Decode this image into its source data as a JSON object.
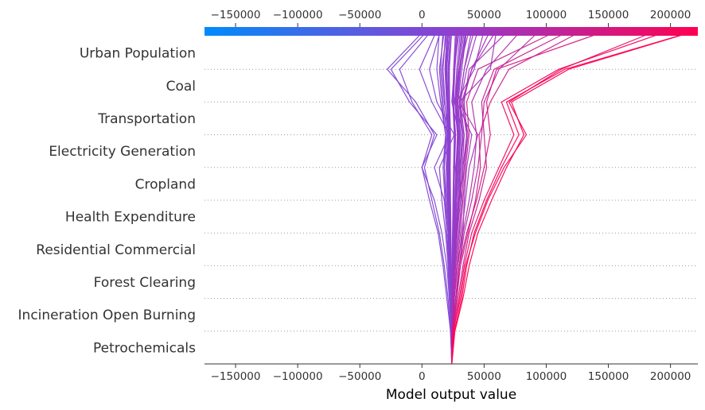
{
  "chart_data": {
    "type": "decision_plot",
    "title": "",
    "xlabel": "Model output value",
    "ylabel": "",
    "xlim": [
      -175000,
      222000
    ],
    "base_value": 24000,
    "xticks": [
      -150000,
      -100000,
      -50000,
      0,
      50000,
      100000,
      150000,
      200000
    ],
    "xtick_labels": [
      "−150000",
      "−100000",
      "−50000",
      "0",
      "50000",
      "100000",
      "150000",
      "200000"
    ],
    "features": [
      "Urban Population",
      "Coal",
      "Transportation",
      "Electricity Generation",
      "Cropland",
      "Health Expenditure",
      "Residential Commercial",
      "Forest Clearing",
      "Incineration Open Burning",
      "Petrochemicals"
    ],
    "grid": "dotted horizontal separators",
    "colorbar": {
      "position": "top",
      "low_color": "#008bfb",
      "mid_color": "#8f3fd0",
      "high_color": "#ff0051"
    },
    "series_note_order": "values listed from bottom (Petrochemicals) to top (final model output)",
    "series": [
      {
        "values": [
          24000,
          26000,
          32000,
          36000,
          42000,
          52000,
          64000,
          78000,
          68000,
          115000,
          222000
        ]
      },
      {
        "values": [
          24000,
          25500,
          30000,
          34000,
          40000,
          50000,
          62000,
          74000,
          64000,
          110000,
          200000
        ]
      },
      {
        "values": [
          24000,
          26500,
          33000,
          38000,
          45000,
          56000,
          68000,
          82000,
          72000,
          118000,
          222000
        ]
      },
      {
        "values": [
          24000,
          25000,
          31000,
          35000,
          43000,
          53000,
          66000,
          84000,
          70000,
          112000,
          190000
        ]
      },
      {
        "values": [
          24000,
          24500,
          28000,
          30000,
          36000,
          44000,
          50000,
          55000,
          52000,
          60000,
          150000
        ]
      },
      {
        "values": [
          24000,
          25000,
          29000,
          33000,
          38000,
          46000,
          52000,
          50000,
          48000,
          58000,
          120000
        ]
      },
      {
        "values": [
          24000,
          24200,
          27000,
          30000,
          34000,
          40000,
          45000,
          48000,
          50000,
          62000,
          95000
        ]
      },
      {
        "values": [
          24000,
          24800,
          28000,
          31000,
          37000,
          43000,
          47000,
          46000,
          55000,
          70000,
          130000
        ]
      },
      {
        "values": [
          24000,
          23800,
          26000,
          28000,
          33000,
          38000,
          42000,
          44000,
          40000,
          52000,
          80000
        ]
      },
      {
        "values": [
          24000,
          24000,
          25000,
          26000,
          28000,
          30000,
          34000,
          36000,
          32000,
          40000,
          60000
        ]
      },
      {
        "values": [
          24000,
          23500,
          22000,
          20000,
          16000,
          10000,
          0,
          12000,
          -10000,
          -25000,
          5000
        ]
      },
      {
        "values": [
          24000,
          23000,
          21000,
          18000,
          14000,
          8000,
          2000,
          10000,
          -5000,
          -28000,
          2000
        ]
      },
      {
        "values": [
          24000,
          23000,
          20000,
          17000,
          13000,
          6000,
          0,
          8000,
          -8000,
          -18000,
          8000
        ]
      },
      {
        "values": [
          24000,
          24000,
          23000,
          22000,
          20000,
          18000,
          10000,
          22000,
          8000,
          -2000,
          12000
        ]
      },
      {
        "values": [
          24000,
          23500,
          22000,
          21000,
          19000,
          16000,
          14000,
          26000,
          12000,
          6000,
          15000
        ]
      },
      {
        "values": [
          24000,
          24500,
          26000,
          29000,
          32000,
          35000,
          38000,
          45000,
          30000,
          55000,
          60000
        ]
      },
      {
        "values": [
          24000,
          24300,
          27000,
          30000,
          33000,
          34000,
          36000,
          40000,
          28000,
          42000,
          50000
        ]
      },
      {
        "values": [
          24000,
          24000,
          25000,
          27000,
          30000,
          32000,
          30000,
          34000,
          26000,
          30000,
          38000
        ]
      },
      {
        "values": [
          24000,
          23800,
          24000,
          25000,
          26000,
          28000,
          27000,
          30000,
          24000,
          26000,
          30000
        ]
      },
      {
        "values": [
          24000,
          24000,
          24500,
          25500,
          27000,
          29000,
          31000,
          32000,
          30000,
          34000,
          42000
        ]
      },
      {
        "values": [
          24000,
          23900,
          23500,
          23000,
          22000,
          21000,
          20000,
          22000,
          18000,
          16000,
          20000
        ]
      },
      {
        "values": [
          24000,
          24100,
          25000,
          26000,
          28000,
          30000,
          33000,
          36000,
          34000,
          38000,
          70000
        ]
      },
      {
        "values": [
          24000,
          23700,
          23000,
          22000,
          21000,
          20000,
          18000,
          19000,
          16000,
          14000,
          18000
        ]
      },
      {
        "values": [
          24000,
          24200,
          26000,
          28000,
          31000,
          33000,
          35000,
          38000,
          36000,
          45000,
          110000
        ]
      },
      {
        "values": [
          24000,
          24000,
          24000,
          24500,
          25000,
          25500,
          26000,
          27000,
          25000,
          26000,
          28000
        ]
      },
      {
        "values": [
          24000,
          23900,
          23000,
          22500,
          21500,
          21000,
          20500,
          21000,
          20000,
          19000,
          21000
        ]
      },
      {
        "values": [
          24000,
          24100,
          24500,
          25000,
          26000,
          27000,
          28000,
          29000,
          27000,
          29000,
          33000
        ]
      },
      {
        "values": [
          24000,
          23800,
          23500,
          23000,
          22500,
          22000,
          21500,
          22000,
          21000,
          20000,
          22000
        ]
      },
      {
        "values": [
          24000,
          24000,
          24800,
          25800,
          27500,
          29000,
          30000,
          31000,
          29000,
          32000,
          36000
        ]
      },
      {
        "values": [
          24000,
          23900,
          23200,
          22800,
          22000,
          21000,
          21000,
          21500,
          20500,
          19500,
          21000
        ]
      },
      {
        "values": [
          24000,
          24100,
          25200,
          26500,
          28500,
          31000,
          32500,
          34000,
          31000,
          36000,
          45000
        ]
      },
      {
        "values": [
          24000,
          23800,
          23000,
          22000,
          21000,
          19000,
          18000,
          20000,
          17000,
          15000,
          17000
        ]
      },
      {
        "values": [
          24000,
          24000,
          24200,
          24800,
          25500,
          26500,
          27500,
          28500,
          26500,
          28000,
          31000
        ]
      },
      {
        "values": [
          24000,
          23900,
          23800,
          23400,
          23000,
          22500,
          22000,
          22500,
          21500,
          21000,
          23000
        ]
      },
      {
        "values": [
          24000,
          24200,
          25500,
          27000,
          29500,
          32000,
          34000,
          37000,
          33000,
          40000,
          55000
        ]
      },
      {
        "values": [
          24000,
          23700,
          22800,
          21500,
          20000,
          18500,
          17000,
          19000,
          15000,
          12000,
          14000
        ]
      },
      {
        "values": [
          24000,
          24000,
          24300,
          24700,
          25200,
          25800,
          26300,
          27000,
          25500,
          26500,
          29000
        ]
      },
      {
        "values": [
          24000,
          23900,
          23600,
          23200,
          22600,
          22000,
          21200,
          21800,
          20800,
          20000,
          22000
        ]
      },
      {
        "values": [
          24000,
          24100,
          24800,
          25600,
          26800,
          28000,
          29500,
          30500,
          28500,
          31000,
          35000
        ]
      },
      {
        "values": [
          24000,
          23800,
          23300,
          22600,
          21800,
          20500,
          19500,
          20500,
          18500,
          17000,
          19000
        ]
      },
      {
        "values": [
          24000,
          24000,
          24100,
          24300,
          24600,
          25000,
          25400,
          26000,
          24800,
          25500,
          27000
        ]
      },
      {
        "values": [
          24000,
          23950,
          23700,
          23500,
          23100,
          22800,
          22400,
          22800,
          22000,
          21500,
          23000
        ]
      },
      {
        "values": [
          24000,
          24050,
          24600,
          25300,
          26300,
          27300,
          28300,
          29300,
          27300,
          30000,
          34000
        ]
      },
      {
        "values": [
          24000,
          23850,
          23400,
          22900,
          22200,
          21500,
          20800,
          21300,
          19800,
          18500,
          20000
        ]
      },
      {
        "values": [
          24000,
          24000,
          24400,
          25000,
          25800,
          26800,
          27800,
          28800,
          26800,
          29000,
          32000
        ]
      },
      {
        "values": [
          24000,
          23950,
          23800,
          23600,
          23300,
          23000,
          22700,
          23000,
          22300,
          22000,
          24000
        ]
      },
      {
        "values": [
          24000,
          24150,
          25000,
          26200,
          27800,
          29800,
          31500,
          33000,
          30500,
          34000,
          40000
        ]
      },
      {
        "values": [
          24000,
          23900,
          23500,
          23100,
          22400,
          21700,
          21000,
          21600,
          20200,
          19200,
          21000
        ]
      },
      {
        "values": [
          24000,
          24000,
          24200,
          24500,
          24900,
          25300,
          25800,
          26500,
          25200,
          26000,
          28000
        ]
      },
      {
        "values": [
          24000,
          24100,
          24700,
          25400,
          26500,
          27600,
          28800,
          29800,
          27800,
          30500,
          36000
        ]
      }
    ]
  }
}
